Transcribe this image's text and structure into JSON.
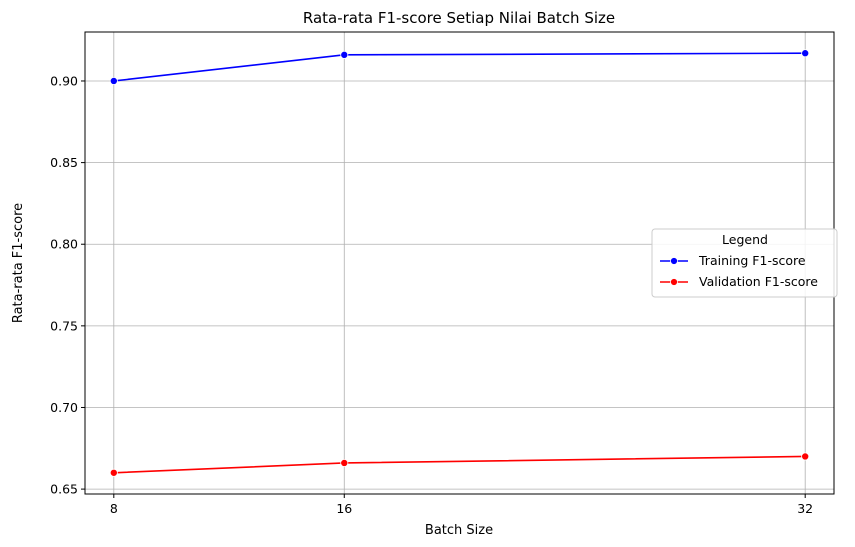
{
  "chart_data": {
    "type": "line",
    "title": "Rata-rata F1-score Setiap Nilai Batch Size",
    "xlabel": "Batch Size",
    "ylabel": "Rata-rata F1-score",
    "x": [
      8,
      16,
      32
    ],
    "xlim": [
      7.0,
      33.0
    ],
    "ylim": [
      0.647,
      0.93
    ],
    "yticks": [
      0.65,
      0.7,
      0.75,
      0.8,
      0.85,
      0.9
    ],
    "ytick_labels": [
      "0.65",
      "0.70",
      "0.75",
      "0.80",
      "0.85",
      "0.90"
    ],
    "xticks": [
      8,
      16,
      32
    ],
    "xtick_labels": [
      "8",
      "16",
      "32"
    ],
    "grid": true,
    "legend": {
      "title": "Legend",
      "placement": "center-right"
    },
    "series": [
      {
        "name": "Training F1-score",
        "color": "#0000ff",
        "marker": "circle",
        "values": [
          0.9,
          0.916,
          0.917
        ]
      },
      {
        "name": "Validation F1-score",
        "color": "#ff0000",
        "marker": "circle",
        "values": [
          0.66,
          0.666,
          0.67
        ]
      }
    ]
  }
}
